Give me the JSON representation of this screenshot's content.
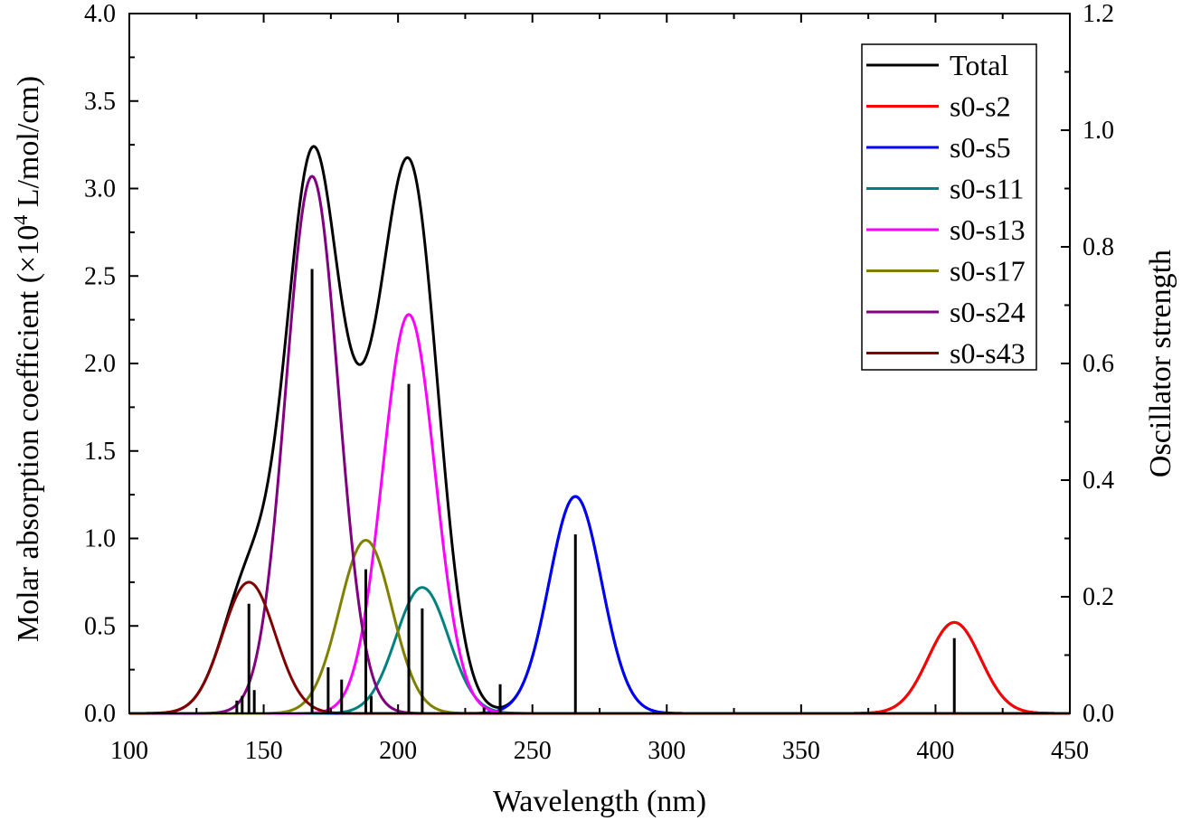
{
  "chart_data": {
    "type": "line",
    "title": "",
    "xlabel": "Wavelength (nm)",
    "ylabel": {
      "pre": "Molar absorption coefficient (×10",
      "sup": "4",
      "post": " L/mol/cm)"
    },
    "y2label": "Oscillator strength",
    "xlim": [
      100,
      450
    ],
    "ylim": [
      0,
      4.0
    ],
    "y2lim": [
      0,
      1.2
    ],
    "grid": false,
    "legend_position": "top-right",
    "x_ticks": [
      "100",
      "150",
      "200",
      "250",
      "300",
      "350",
      "400",
      "450"
    ],
    "y_ticks": [
      "0.0",
      "0.5",
      "1.0",
      "1.5",
      "2.0",
      "2.5",
      "3.0",
      "3.5",
      "4.0"
    ],
    "y2_ticks": [
      "0.0",
      "0.2",
      "0.4",
      "0.6",
      "0.8",
      "1.0",
      "1.2"
    ],
    "band_fwhm_nm": 23,
    "series": [
      {
        "name": "Total",
        "color": "#000000",
        "type": "sum"
      },
      {
        "name": "s0-s2",
        "color": "#ff0000",
        "center": 407,
        "peak": 0.52
      },
      {
        "name": "s0-s5",
        "color": "#0000ff",
        "center": 266,
        "peak": 1.24
      },
      {
        "name": "s0-s11",
        "color": "#008080",
        "center": 209,
        "peak": 0.72
      },
      {
        "name": "s0-s13",
        "color": "#ff00ff",
        "center": 204,
        "peak": 2.28
      },
      {
        "name": "s0-s17",
        "color": "#808000",
        "center": 188,
        "peak": 0.99
      },
      {
        "name": "s0-s24",
        "color": "#800080",
        "center": 168,
        "peak": 3.07
      },
      {
        "name": "s0-s43",
        "color": "#800000",
        "center": 144.5,
        "peak": 0.75
      }
    ],
    "sticks": [
      {
        "x": 140,
        "f": 0.022
      },
      {
        "x": 142,
        "f": 0.03
      },
      {
        "x": 144.5,
        "f": 0.188
      },
      {
        "x": 146.5,
        "f": 0.04
      },
      {
        "x": 168,
        "f": 0.762
      },
      {
        "x": 174,
        "f": 0.079
      },
      {
        "x": 179,
        "f": 0.058
      },
      {
        "x": 188,
        "f": 0.247
      },
      {
        "x": 190,
        "f": 0.03
      },
      {
        "x": 204,
        "f": 0.565
      },
      {
        "x": 209,
        "f": 0.18
      },
      {
        "x": 232,
        "f": 0.01
      },
      {
        "x": 238,
        "f": 0.05
      },
      {
        "x": 266,
        "f": 0.307
      },
      {
        "x": 407,
        "f": 0.129
      }
    ]
  }
}
